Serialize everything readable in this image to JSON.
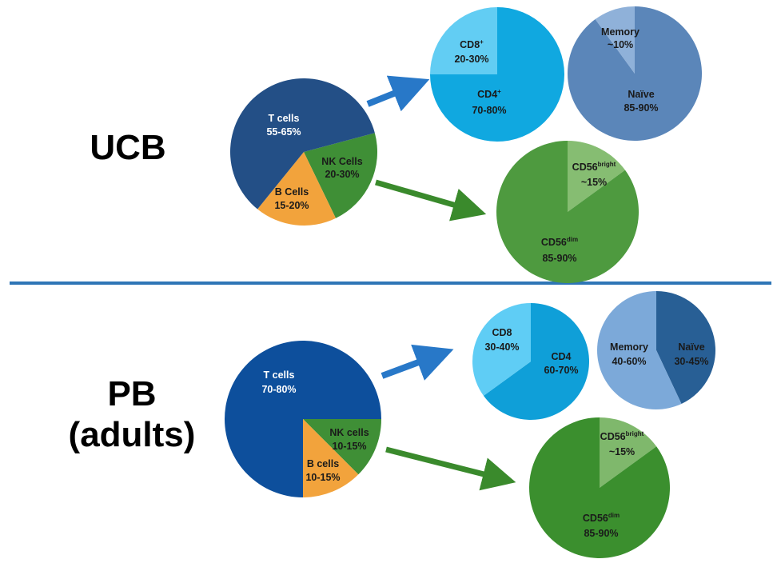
{
  "sections": {
    "ucb": {
      "title": "UCB",
      "main_pie": {
        "t_cells": {
          "name": "T cells",
          "range": "55-65%",
          "value": 60
        },
        "nk_cells": {
          "name": "NK Cells",
          "range": "20-30%",
          "value": 22
        },
        "b_cells": {
          "name": "B Cells",
          "range": "15-20%",
          "value": 18
        }
      },
      "t_pie": {
        "cd4": {
          "name": "CD4",
          "sup": "+",
          "range": "70-80%",
          "value": 75
        },
        "cd8": {
          "name": "CD8",
          "sup": "+",
          "range": "20-30%",
          "value": 25
        }
      },
      "memory_pie": {
        "naive": {
          "name": "Naïve",
          "range": "85-90%",
          "value": 90
        },
        "memory": {
          "name": "Memory",
          "range": "~10%",
          "value": 10
        }
      },
      "nk_pie": {
        "dim": {
          "name": "CD56",
          "sup": "dim",
          "range": "85-90%",
          "value": 85
        },
        "bright": {
          "name": "CD56",
          "sup": "bright",
          "range": "~15%",
          "value": 15
        }
      }
    },
    "pb": {
      "title_line1": "PB",
      "title_line2": "(adults)",
      "main_pie": {
        "t_cells": {
          "name": "T cells",
          "range": "70-80%",
          "value": 75
        },
        "nk_cells": {
          "name": "NK cells",
          "range": "10-15%",
          "value": 12.5
        },
        "b_cells": {
          "name": "B cells",
          "range": "10-15%",
          "value": 12.5
        }
      },
      "t_pie": {
        "cd4": {
          "name": "CD4",
          "range": "60-70%",
          "value": 65
        },
        "cd8": {
          "name": "CD8",
          "range": "30-40%",
          "value": 35
        }
      },
      "memory_pie": {
        "naive": {
          "name": "Naïve",
          "range": "30-45%",
          "value": 43
        },
        "memory": {
          "name": "Memory",
          "range": "40-60%",
          "value": 57
        }
      },
      "nk_pie": {
        "dim": {
          "name": "CD56",
          "sup": "dim",
          "range": "85-90%",
          "value": 85
        },
        "bright": {
          "name": "CD56",
          "sup": "bright",
          "range": "~15%",
          "value": 15
        }
      }
    }
  },
  "colors": {
    "ucb_t": "#234f86",
    "pb_t": "#0d4f9c",
    "nk_green": "#3f8f36",
    "b_orange": "#f2a33c",
    "cd4": "#10a8e0",
    "cd8": "#62cdf3",
    "pb_cd4": "#0f9fd8",
    "pb_cd8": "#5fcdf5",
    "naive": "#5b86b9",
    "memory": "#8fb1d9",
    "pb_naive": "#285f95",
    "pb_memory": "#7ca9d9",
    "nk_dim": "#4e9a3f",
    "nk_bright": "#86bd72",
    "pb_nk_dim": "#3b8f2e",
    "pb_nk_bright": "#7fb86c",
    "arrow_blue": "#2878c8",
    "arrow_green": "#3a8a2c"
  }
}
